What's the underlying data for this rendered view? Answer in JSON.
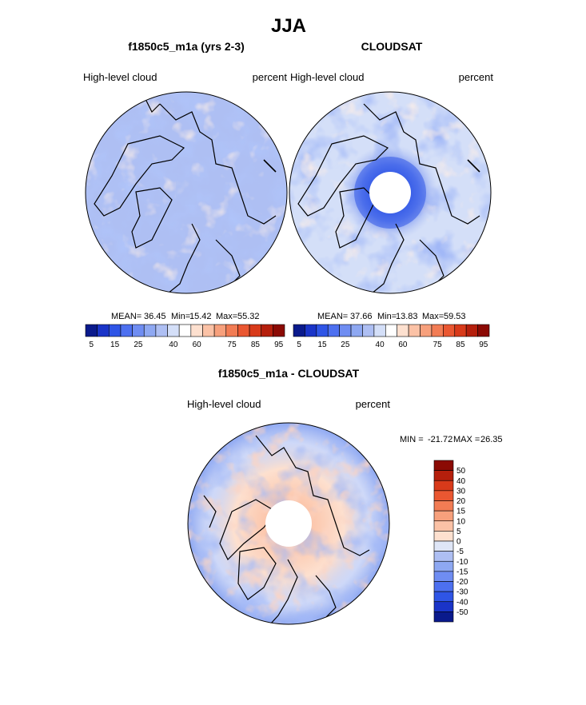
{
  "chart_data": [
    {
      "type": "heatmap",
      "projection": "north polar stereographic",
      "figure_title": "JJA",
      "title": "f1850c5_m1a (yrs 2-3)",
      "left_label": "High-level cloud",
      "right_label": "percent",
      "stats": {
        "mean_label": "MEAN=",
        "mean": "36.45",
        "min_label": "Min=",
        "min": "15.42",
        "max_label": "Max=",
        "max": "55.32"
      },
      "colorbar": {
        "orientation": "horizontal",
        "levels": [
          5,
          10,
          15,
          20,
          25,
          30,
          35,
          40,
          50,
          60,
          65,
          70,
          75,
          80,
          85,
          90,
          95
        ],
        "tick_labels": [
          "5",
          "15",
          "25",
          "40",
          "60",
          "75",
          "85",
          "95"
        ],
        "colors": [
          "#0a1a8c",
          "#1a34c8",
          "#2f55e6",
          "#4d70f0",
          "#6f8df2",
          "#8ea8f2",
          "#aebff3",
          "#d4dff8",
          "#ffffff",
          "#fde0cf",
          "#fbc2a6",
          "#f7a07c",
          "#f27c54",
          "#ea5731",
          "#d83a1a",
          "#b51f0c",
          "#8b0a04"
        ]
      }
    },
    {
      "type": "heatmap",
      "projection": "north polar stereographic",
      "title": "CLOUDSAT",
      "left_label": "High-level cloud",
      "right_label": "percent",
      "stats": {
        "mean_label": "MEAN=",
        "mean": "37.66",
        "min_label": "Min=",
        "min": "13.83",
        "max_label": "Max=",
        "max": "59.53"
      },
      "colorbar": {
        "orientation": "horizontal",
        "levels": [
          5,
          10,
          15,
          20,
          25,
          30,
          35,
          40,
          50,
          60,
          65,
          70,
          75,
          80,
          85,
          90,
          95
        ],
        "tick_labels": [
          "5",
          "15",
          "25",
          "40",
          "60",
          "75",
          "85",
          "95"
        ],
        "colors": [
          "#0a1a8c",
          "#1a34c8",
          "#2f55e6",
          "#4d70f0",
          "#6f8df2",
          "#8ea8f2",
          "#aebff3",
          "#d4dff8",
          "#ffffff",
          "#fde0cf",
          "#fbc2a6",
          "#f7a07c",
          "#f27c54",
          "#ea5731",
          "#d83a1a",
          "#b51f0c",
          "#8b0a04"
        ]
      }
    },
    {
      "type": "heatmap",
      "projection": "north polar stereographic",
      "title": "f1850c5_m1a - CLOUDSAT",
      "left_label": "High-level cloud",
      "right_label": "percent",
      "stats": {
        "min_label": "MIN =",
        "min": "-21.72",
        "max_label": "MAX =",
        "max": "26.35"
      },
      "colorbar": {
        "orientation": "vertical",
        "levels": [
          50,
          40,
          30,
          20,
          15,
          10,
          5,
          0,
          -5,
          -10,
          -15,
          -20,
          -30,
          -40,
          -50
        ],
        "tick_labels": [
          "50",
          "40",
          "30",
          "20",
          "15",
          "10",
          "5",
          "0",
          "-5",
          "-10",
          "-15",
          "-20",
          "-30",
          "-40",
          "-50"
        ],
        "colors": [
          "#8b0a04",
          "#b51f0c",
          "#d83a1a",
          "#ea5731",
          "#f27c54",
          "#f7a07c",
          "#fbc2a6",
          "#fde0cf",
          "#dfe6f7",
          "#aebff3",
          "#8ea8f2",
          "#6f8df2",
          "#4d70f0",
          "#2f55e6",
          "#1a34c8",
          "#0a1a8c"
        ]
      }
    }
  ]
}
